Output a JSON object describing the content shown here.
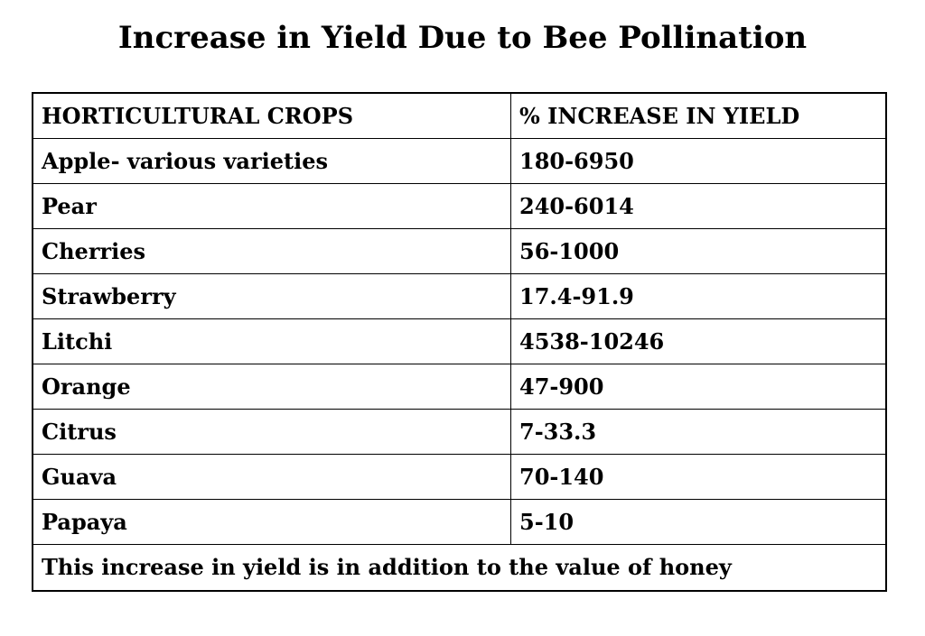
{
  "title": "Increase in Yield Due to Bee Pollination",
  "table": {
    "headers": [
      "HORTICULTURAL CROPS",
      "% INCREASE IN YIELD"
    ],
    "rows": [
      {
        "crop": "Apple- various varieties",
        "increase": "180-6950"
      },
      {
        "crop": "Pear",
        "increase": "240-6014"
      },
      {
        "crop": "Cherries",
        "increase": "56-1000"
      },
      {
        "crop": "Strawberry",
        "increase": "17.4-91.9"
      },
      {
        "crop": "Litchi",
        "increase": "4538-10246"
      },
      {
        "crop": "Orange",
        "increase": "47-900"
      },
      {
        "crop": "Citrus",
        "increase": "7-33.3"
      },
      {
        "crop": "Guava",
        "increase": "70-140"
      },
      {
        "crop": "Papaya",
        "increase": "5-10"
      }
    ],
    "footnote": "This increase in yield is in addition to the value of honey"
  }
}
